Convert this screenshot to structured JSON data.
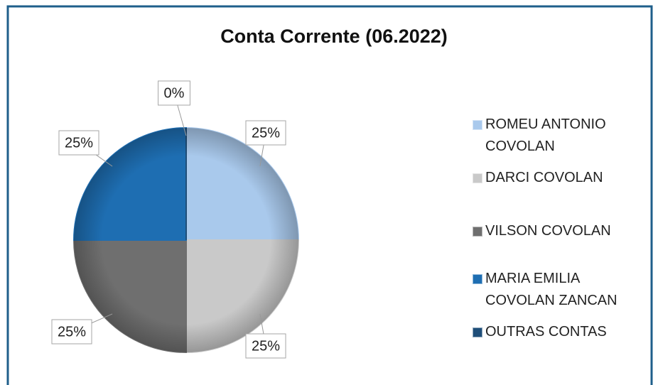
{
  "chart_data": {
    "type": "pie",
    "title": "Conta Corrente (06.2022)",
    "categories": [
      "ROMEU ANTONIO COVOLAN",
      "DARCI COVOLAN",
      "VILSON COVOLAN",
      "MARIA EMILIA COVOLAN ZANCAN",
      "OUTRAS CONTAS"
    ],
    "values": [
      25,
      25,
      25,
      25,
      0
    ],
    "value_labels": [
      "25%",
      "25%",
      "25%",
      "25%",
      "0%"
    ],
    "colors": [
      "#a9c9ec",
      "#c9c9c9",
      "#6f6f6f",
      "#1e6eb2",
      "#1f4e79"
    ],
    "legend": "right"
  }
}
